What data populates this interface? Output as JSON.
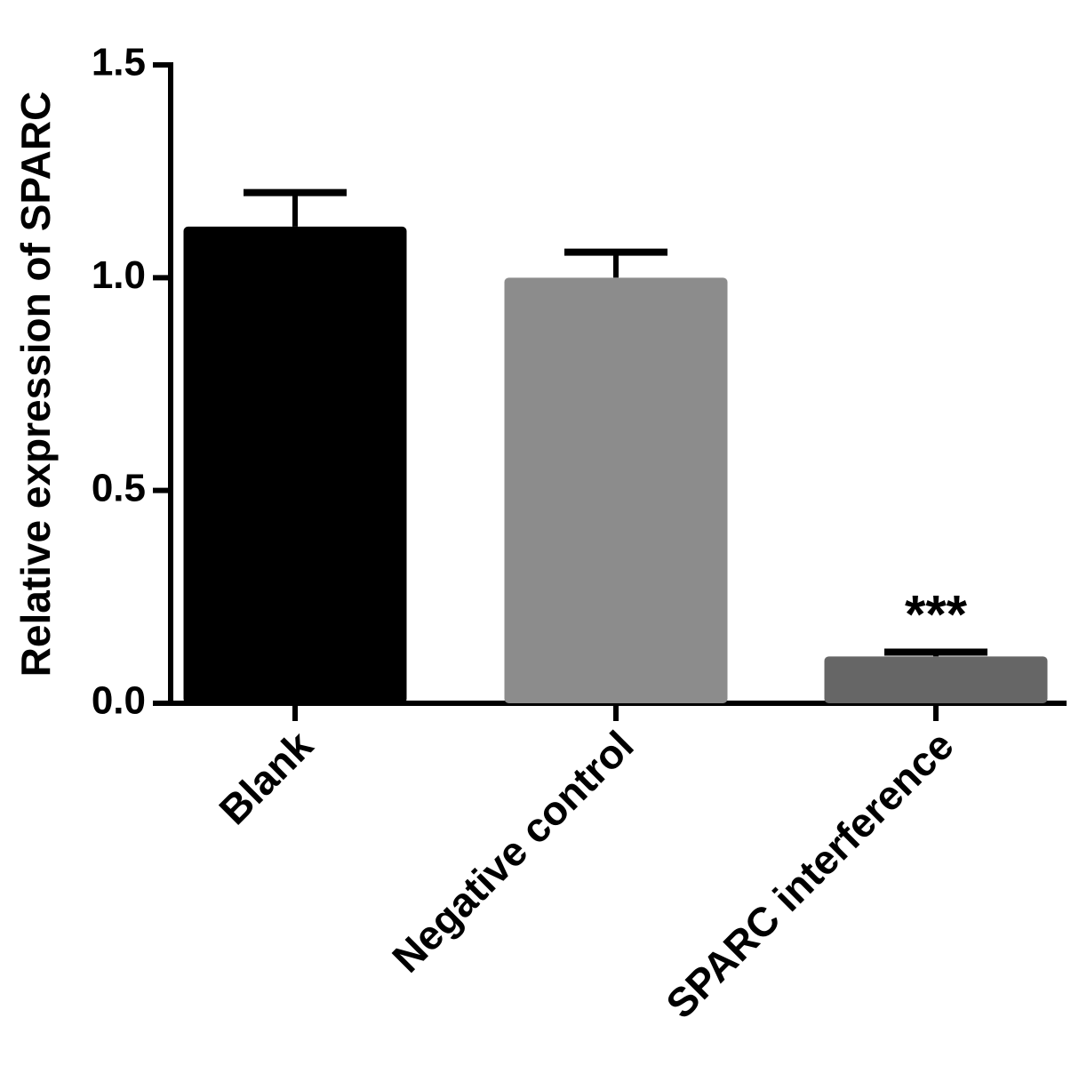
{
  "chart_data": {
    "type": "bar",
    "y_label": "Relative expression of SPARC",
    "categories": [
      "Blank",
      "Negative control",
      "SPARC interference"
    ],
    "values": [
      1.12,
      1.0,
      0.11
    ],
    "errors": [
      0.08,
      0.06,
      0.01
    ],
    "colors": [
      "#000000",
      "#8c8c8c",
      "#666666"
    ],
    "ylim": [
      0,
      1.5
    ],
    "yticks": [
      {
        "value": 0,
        "label": "0.0"
      },
      0.5,
      {
        "value": 1,
        "label": "1.0"
      },
      1.5
    ],
    "annotations": [
      {
        "text": "***",
        "category": "SPARC interference"
      }
    ]
  }
}
